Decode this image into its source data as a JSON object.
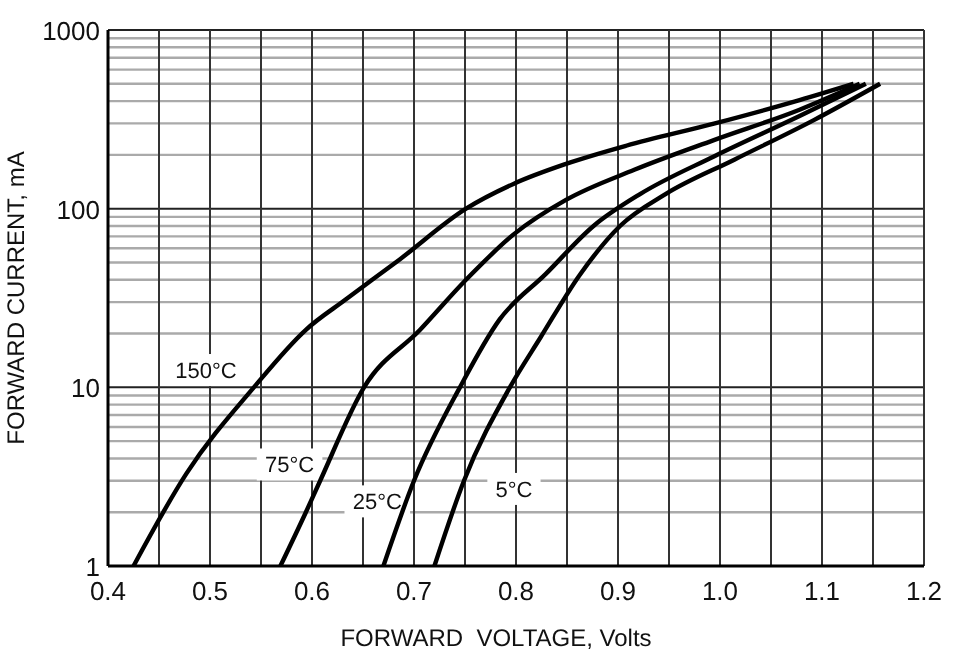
{
  "chart_data": {
    "type": "line",
    "xlabel": "FORWARD  VOLTAGE, Volts",
    "ylabel": "FORWARD CURRENT, mA",
    "log": "y",
    "grid": true,
    "line_style": "solid",
    "marker": "none",
    "xlim": [
      0.4,
      1.2
    ],
    "xticks": [
      {
        "value": 0.4,
        "label": "0.4"
      },
      {
        "value": 0.5,
        "label": "0.5"
      },
      {
        "value": 0.6,
        "label": "0.6"
      },
      {
        "value": 0.7,
        "label": "0.7"
      },
      {
        "value": 0.8,
        "label": "0.8"
      },
      {
        "value": 0.9,
        "label": "0.9"
      },
      {
        "value": 1,
        "label": "1.0"
      },
      {
        "value": 1.1,
        "label": "1.1"
      },
      {
        "value": 1.2,
        "label": "1.2"
      }
    ],
    "ylim": [
      1,
      1000
    ],
    "yticks": [
      1,
      10,
      100,
      1000
    ],
    "series": [
      {
        "color": "#000000",
        "x": [
          0.425,
          0.477,
          0.543,
          0.594,
          0.633,
          0.686,
          0.751,
          0.798,
          0.849,
          0.908,
          0.994,
          1.078,
          1.131
        ],
        "values": [
          1,
          3.3,
          10,
          21,
          31,
          52,
          100,
          138,
          178,
          225,
          299,
          405,
          500
        ]
      },
      {
        "color": "#000000",
        "x": [
          0.569,
          0.594,
          0.608,
          0.651,
          0.706,
          0.751,
          0.798,
          0.849,
          0.916,
          0.994,
          1.078,
          1.137
        ],
        "values": [
          1,
          2,
          3,
          10,
          21,
          40,
          72,
          112,
          165,
          242,
          358,
          500
        ]
      },
      {
        "color": "#000000",
        "x": [
          0.67,
          0.7,
          0.745,
          0.784,
          0.829,
          0.876,
          0.922,
          0.994,
          1.078,
          1.143
        ],
        "values": [
          1,
          3,
          10,
          24,
          43,
          80,
          121,
          196,
          330,
          500
        ]
      },
      {
        "color": "#000000",
        "x": [
          0.72,
          0.749,
          0.794,
          0.824,
          0.863,
          0.902,
          0.947,
          1.014,
          1.092,
          1.157
        ],
        "values": [
          1,
          3,
          10,
          19,
          43,
          80,
          121,
          188,
          313,
          500
        ]
      }
    ],
    "annotations": [
      {
        "text": "150°C",
        "x": 0.496,
        "y": 12.5
      },
      {
        "text": "75°C",
        "x": 0.578,
        "y": 3.7
      },
      {
        "text": "25°C",
        "x": 0.664,
        "y": 2.3
      },
      {
        "text": "5°C",
        "x": 0.798,
        "y": 2.7
      }
    ]
  }
}
